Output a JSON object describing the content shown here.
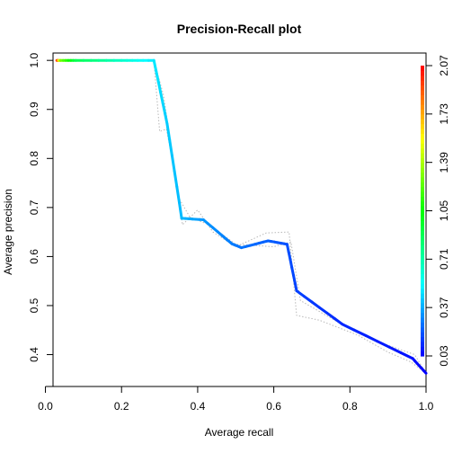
{
  "chart_data": {
    "type": "line",
    "title": "Precision-Recall plot",
    "xlabel": "Average recall",
    "ylabel": "Average precision",
    "xlim": [
      0.02,
      1.0
    ],
    "ylim": [
      0.335,
      1.015
    ],
    "x_ticks": [
      "0.0",
      "0.2",
      "0.4",
      "0.6",
      "0.8",
      "1.0"
    ],
    "y_ticks": [
      "0.4",
      "0.5",
      "0.6",
      "0.7",
      "0.8",
      "0.9",
      "1.0"
    ],
    "grid": false,
    "series": [
      {
        "color_by": "threshold",
        "points": [
          {
            "x": 0.03,
            "y": 1.0,
            "c": 2.07
          },
          {
            "x": 0.04,
            "y": 1.0,
            "c": 1.3
          },
          {
            "x": 0.08,
            "y": 1.0,
            "c": 0.9
          },
          {
            "x": 0.2,
            "y": 1.0,
            "c": 0.65
          },
          {
            "x": 0.285,
            "y": 1.0,
            "c": 0.5
          },
          {
            "x": 0.32,
            "y": 0.87,
            "c": 0.44
          },
          {
            "x": 0.358,
            "y": 0.678,
            "c": 0.4
          },
          {
            "x": 0.415,
            "y": 0.675,
            "c": 0.33
          },
          {
            "x": 0.49,
            "y": 0.626,
            "c": 0.28
          },
          {
            "x": 0.515,
            "y": 0.618,
            "c": 0.26
          },
          {
            "x": 0.585,
            "y": 0.632,
            "c": 0.22
          },
          {
            "x": 0.635,
            "y": 0.625,
            "c": 0.19
          },
          {
            "x": 0.66,
            "y": 0.53,
            "c": 0.16
          },
          {
            "x": 0.78,
            "y": 0.462,
            "c": 0.11
          },
          {
            "x": 0.965,
            "y": 0.392,
            "c": 0.06
          },
          {
            "x": 1.0,
            "y": 0.362,
            "c": 0.03
          }
        ]
      }
    ],
    "spread_lines": [
      [
        [
          0.285,
          1.0
        ],
        [
          0.3,
          0.855
        ],
        [
          0.318,
          0.86
        ],
        [
          0.345,
          0.75
        ],
        [
          0.36,
          0.665
        ],
        [
          0.4,
          0.695
        ],
        [
          0.44,
          0.65
        ],
        [
          0.5,
          0.62
        ],
        [
          0.58,
          0.648
        ],
        [
          0.64,
          0.65
        ],
        [
          0.66,
          0.48
        ],
        [
          0.72,
          0.47
        ],
        [
          0.82,
          0.44
        ],
        [
          0.9,
          0.405
        ],
        [
          0.96,
          0.385
        ],
        [
          1.0,
          0.362
        ]
      ],
      [
        [
          0.285,
          1.0
        ],
        [
          0.31,
          0.93
        ],
        [
          0.35,
          0.72
        ],
        [
          0.38,
          0.68
        ],
        [
          0.43,
          0.665
        ],
        [
          0.5,
          0.625
        ],
        [
          0.6,
          0.62
        ],
        [
          0.645,
          0.63
        ],
        [
          0.67,
          0.51
        ],
        [
          0.76,
          0.47
        ],
        [
          0.86,
          0.43
        ],
        [
          0.97,
          0.4
        ],
        [
          1.0,
          0.362
        ]
      ]
    ],
    "colorkey": {
      "labels": [
        "0.03",
        "0.37",
        "0.71",
        "1.05",
        "1.39",
        "1.73",
        "2.07"
      ],
      "range": [
        0.03,
        2.07
      ],
      "colors": [
        "#0000ff",
        "#00ffff",
        "#00ff00",
        "#ffff00",
        "#ff0000"
      ]
    }
  }
}
